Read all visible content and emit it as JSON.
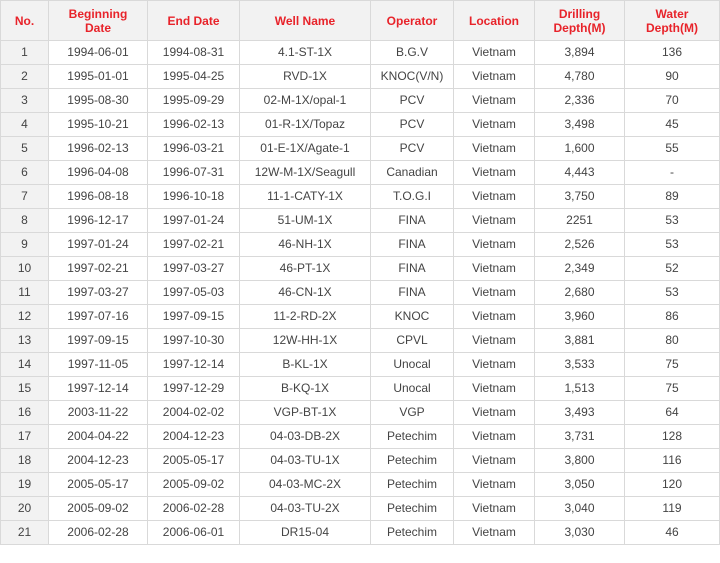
{
  "table": {
    "headers": {
      "no": "No.",
      "begin_l1": "Beginning",
      "begin_l2": "Date",
      "end": "End Date",
      "well": "Well Name",
      "operator": "Operator",
      "location": "Location",
      "drill_l1": "Drilling",
      "drill_l2": "Depth(M)",
      "water_l1": "Water",
      "water_l2": "Depth(M)"
    },
    "rows": [
      {
        "no": "1",
        "begin": "1994-06-01",
        "end": "1994-08-31",
        "well": "4.1-ST-1X",
        "operator": "B.G.V",
        "location": "Vietnam",
        "drilling": "3,894",
        "water": "136"
      },
      {
        "no": "2",
        "begin": "1995-01-01",
        "end": "1995-04-25",
        "well": "RVD-1X",
        "operator": "KNOC(V/N)",
        "location": "Vietnam",
        "drilling": "4,780",
        "water": "90"
      },
      {
        "no": "3",
        "begin": "1995-08-30",
        "end": "1995-09-29",
        "well": "02-M-1X/opal-1",
        "operator": "PCV",
        "location": "Vietnam",
        "drilling": "2,336",
        "water": "70"
      },
      {
        "no": "4",
        "begin": "1995-10-21",
        "end": "1996-02-13",
        "well": "01-R-1X/Topaz",
        "operator": "PCV",
        "location": "Vietnam",
        "drilling": "3,498",
        "water": "45"
      },
      {
        "no": "5",
        "begin": "1996-02-13",
        "end": "1996-03-21",
        "well": "01-E-1X/Agate-1",
        "operator": "PCV",
        "location": "Vietnam",
        "drilling": "1,600",
        "water": "55"
      },
      {
        "no": "6",
        "begin": "1996-04-08",
        "end": "1996-07-31",
        "well": "12W-M-1X/Seagull",
        "operator": "Canadian",
        "location": "Vietnam",
        "drilling": "4,443",
        "water": "-"
      },
      {
        "no": "7",
        "begin": "1996-08-18",
        "end": "1996-10-18",
        "well": "11-1-CATY-1X",
        "operator": "T.O.G.I",
        "location": "Vietnam",
        "drilling": "3,750",
        "water": "89"
      },
      {
        "no": "8",
        "begin": "1996-12-17",
        "end": "1997-01-24",
        "well": "51-UM-1X",
        "operator": "FINA",
        "location": "Vietnam",
        "drilling": "2251",
        "water": "53"
      },
      {
        "no": "9",
        "begin": "1997-01-24",
        "end": "1997-02-21",
        "well": "46-NH-1X",
        "operator": "FINA",
        "location": "Vietnam",
        "drilling": "2,526",
        "water": "53"
      },
      {
        "no": "10",
        "begin": "1997-02-21",
        "end": "1997-03-27",
        "well": "46-PT-1X",
        "operator": "FINA",
        "location": "Vietnam",
        "drilling": "2,349",
        "water": "52"
      },
      {
        "no": "11",
        "begin": "1997-03-27",
        "end": "1997-05-03",
        "well": "46-CN-1X",
        "operator": "FINA",
        "location": "Vietnam",
        "drilling": "2,680",
        "water": "53"
      },
      {
        "no": "12",
        "begin": "1997-07-16",
        "end": "1997-09-15",
        "well": "11-2-RD-2X",
        "operator": "KNOC",
        "location": "Vietnam",
        "drilling": "3,960",
        "water": "86"
      },
      {
        "no": "13",
        "begin": "1997-09-15",
        "end": "1997-10-30",
        "well": "12W-HH-1X",
        "operator": "CPVL",
        "location": "Vietnam",
        "drilling": "3,881",
        "water": "80"
      },
      {
        "no": "14",
        "begin": "1997-11-05",
        "end": "1997-12-14",
        "well": "B-KL-1X",
        "operator": "Unocal",
        "location": "Vietnam",
        "drilling": "3,533",
        "water": "75"
      },
      {
        "no": "15",
        "begin": "1997-12-14",
        "end": "1997-12-29",
        "well": "B-KQ-1X",
        "operator": "Unocal",
        "location": "Vietnam",
        "drilling": "1,513",
        "water": "75"
      },
      {
        "no": "16",
        "begin": "2003-11-22",
        "end": "2004-02-02",
        "well": "VGP-BT-1X",
        "operator": "VGP",
        "location": "Vietnam",
        "drilling": "3,493",
        "water": "64"
      },
      {
        "no": "17",
        "begin": "2004-04-22",
        "end": "2004-12-23",
        "well": "04-03-DB-2X",
        "operator": "Petechim",
        "location": "Vietnam",
        "drilling": "3,731",
        "water": "128"
      },
      {
        "no": "18",
        "begin": "2004-12-23",
        "end": "2005-05-17",
        "well": "04-03-TU-1X",
        "operator": "Petechim",
        "location": "Vietnam",
        "drilling": "3,800",
        "water": "116"
      },
      {
        "no": "19",
        "begin": "2005-05-17",
        "end": "2005-09-02",
        "well": "04-03-MC-2X",
        "operator": "Petechim",
        "location": "Vietnam",
        "drilling": "3,050",
        "water": "120"
      },
      {
        "no": "20",
        "begin": "2005-09-02",
        "end": "2006-02-28",
        "well": "04-03-TU-2X",
        "operator": "Petechim",
        "location": "Vietnam",
        "drilling": "3,040",
        "water": "119"
      },
      {
        "no": "21",
        "begin": "2006-02-28",
        "end": "2006-06-01",
        "well": "DR15-04",
        "operator": "Petechim",
        "location": "Vietnam",
        "drilling": "3,030",
        "water": "46"
      }
    ]
  }
}
